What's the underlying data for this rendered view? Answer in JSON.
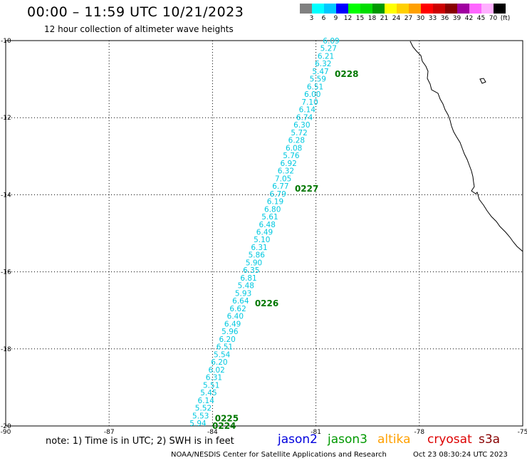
{
  "header": {
    "title": "00:00 – 11:59 UTC 10/21/2023",
    "subtitle": "12 hour collection of altimeter wave heights"
  },
  "colorbar": {
    "colors": [
      "#808080",
      "#00ffff",
      "#00c8ff",
      "#0000ff",
      "#00ff00",
      "#00dd00",
      "#009900",
      "#ffff00",
      "#ffd000",
      "#ffa000",
      "#ff0000",
      "#cc0000",
      "#880000",
      "#a000a0",
      "#ff66ff",
      "#ffb0ff",
      "#000000"
    ],
    "labels": [
      "3",
      "6",
      "9",
      "12",
      "15",
      "18",
      "21",
      "24",
      "27",
      "30",
      "33",
      "36",
      "39",
      "42",
      "45",
      "70",
      "(ft)"
    ]
  },
  "map": {
    "lon_range": [
      -90,
      -75
    ],
    "lat_range": [
      -20,
      -10
    ],
    "x_ticks": [
      "-90",
      "-87",
      "-84",
      "-81",
      "-78",
      "-75"
    ],
    "y_ticks": [
      "-10",
      "-12",
      "-14",
      "-16",
      "-18",
      "-20"
    ],
    "grid": "dotted",
    "track_color": "#00c8e0",
    "time_label_color": "#007700",
    "wave_heights": [
      "6.09",
      "5.27",
      "6.21",
      "6.32",
      "5.47",
      "5.59",
      "6.51",
      "6.00",
      "7.10",
      "6.14",
      "6.74",
      "6.30",
      "5.72",
      "6.28",
      "6.08",
      "5.76",
      "6.92",
      "6.32",
      "7.05",
      "6.77",
      "6.79",
      "6.19",
      "6.80",
      "5.61",
      "6.48",
      "6.49",
      "5.10",
      "6.31",
      "5.86",
      "5.90",
      "6.35",
      "6.81",
      "5.48",
      "5.93",
      "6.64",
      "6.62",
      "6.40",
      "6.49",
      "5.96",
      "6.20",
      "6.51",
      "5.54",
      "6.20",
      "6.02",
      "6.31",
      "5.51",
      "5.45",
      "6.14",
      "5.52",
      "5.53",
      "5.94"
    ],
    "time_labels": [
      {
        "text": "0228",
        "index": 4
      },
      {
        "text": "0227",
        "index": 19
      },
      {
        "text": "0226",
        "index": 34
      },
      {
        "text": "0225",
        "index": 49
      },
      {
        "text": "0224",
        "index": 50
      }
    ]
  },
  "footer": {
    "note": "note: 1) Time is in UTC; 2) SWH is in feet",
    "satellites": [
      {
        "name": "jason2",
        "color": "#0000dd"
      },
      {
        "name": "jason3",
        "color": "#009900"
      },
      {
        "name": "altika",
        "color": "#ffa000"
      },
      {
        "name": "cryosat",
        "color": "#dd0000"
      },
      {
        "name": "s3a",
        "color": "#880000"
      }
    ],
    "credit": "NOAA/NESDIS Center for Satellite Applications and Research",
    "timestamp": "Oct 23 08:30:24 UTC 2023"
  }
}
